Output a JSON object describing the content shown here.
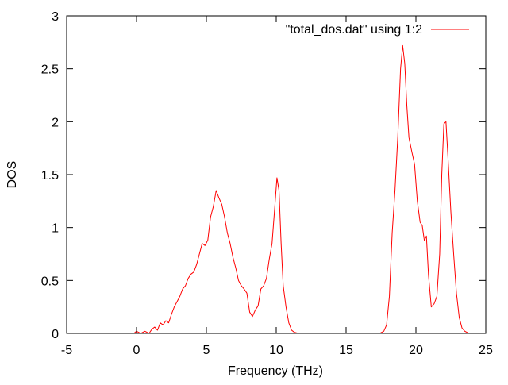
{
  "chart_data": {
    "type": "line",
    "xlabel": "Frequency (THz)",
    "ylabel": "DOS",
    "xlim": [
      -5,
      25
    ],
    "ylim": [
      0,
      3
    ],
    "x_ticks": [
      -5,
      0,
      5,
      10,
      15,
      20,
      25
    ],
    "x_tick_labels": [
      "-5",
      "0",
      "5",
      "10",
      "15",
      "20",
      "25"
    ],
    "y_ticks": [
      0,
      0.5,
      1,
      1.5,
      2,
      2.5,
      3
    ],
    "y_tick_labels": [
      "0",
      "0.5",
      "1",
      "1.5",
      "2",
      "2.5",
      "3"
    ],
    "grid": false,
    "legend_position": "top-right",
    "series": [
      {
        "name": "\"total_dos.dat\" using 1:2",
        "color": "#ff0000",
        "x": [
          -0.2,
          0.0,
          0.3,
          0.6,
          0.9,
          1.1,
          1.3,
          1.5,
          1.7,
          1.9,
          2.1,
          2.3,
          2.5,
          2.7,
          2.9,
          3.1,
          3.3,
          3.5,
          3.7,
          3.9,
          4.1,
          4.3,
          4.5,
          4.7,
          4.9,
          5.1,
          5.3,
          5.5,
          5.7,
          5.9,
          6.1,
          6.3,
          6.5,
          6.7,
          6.9,
          7.1,
          7.3,
          7.5,
          7.7,
          7.9,
          8.1,
          8.3,
          8.5,
          8.7,
          8.9,
          9.1,
          9.3,
          9.5,
          9.7,
          9.9,
          10.05,
          10.2,
          10.35,
          10.5,
          10.7,
          10.9,
          11.1,
          11.3,
          11.6,
          11.9,
          12.5,
          14.0,
          16.0,
          17.4,
          17.7,
          17.9,
          18.1,
          18.3,
          18.5,
          18.7,
          18.9,
          19.05,
          19.2,
          19.35,
          19.5,
          19.7,
          19.9,
          20.1,
          20.3,
          20.45,
          20.6,
          20.75,
          20.9,
          21.1,
          21.3,
          21.5,
          21.7,
          21.85,
          22.0,
          22.15,
          22.3,
          22.5,
          22.7,
          22.9,
          23.1,
          23.3,
          23.5,
          23.8,
          25.0
        ],
        "y": [
          0.0,
          0.02,
          0.0,
          0.02,
          0.0,
          0.04,
          0.06,
          0.03,
          0.1,
          0.08,
          0.12,
          0.1,
          0.18,
          0.25,
          0.3,
          0.35,
          0.42,
          0.45,
          0.52,
          0.56,
          0.58,
          0.65,
          0.75,
          0.85,
          0.83,
          0.88,
          1.1,
          1.2,
          1.35,
          1.28,
          1.22,
          1.1,
          0.95,
          0.85,
          0.72,
          0.62,
          0.5,
          0.45,
          0.42,
          0.38,
          0.2,
          0.16,
          0.22,
          0.26,
          0.42,
          0.45,
          0.52,
          0.7,
          0.85,
          1.2,
          1.47,
          1.35,
          0.85,
          0.45,
          0.25,
          0.1,
          0.03,
          0.01,
          0.0,
          0.0,
          0.0,
          0.0,
          0.0,
          0.0,
          0.02,
          0.08,
          0.35,
          0.95,
          1.35,
          1.85,
          2.5,
          2.72,
          2.55,
          2.15,
          1.85,
          1.72,
          1.6,
          1.25,
          1.05,
          1.02,
          0.88,
          0.92,
          0.55,
          0.25,
          0.28,
          0.35,
          0.75,
          1.5,
          1.98,
          2.0,
          1.65,
          1.15,
          0.75,
          0.38,
          0.15,
          0.05,
          0.02,
          0.0,
          0.0
        ]
      }
    ]
  }
}
